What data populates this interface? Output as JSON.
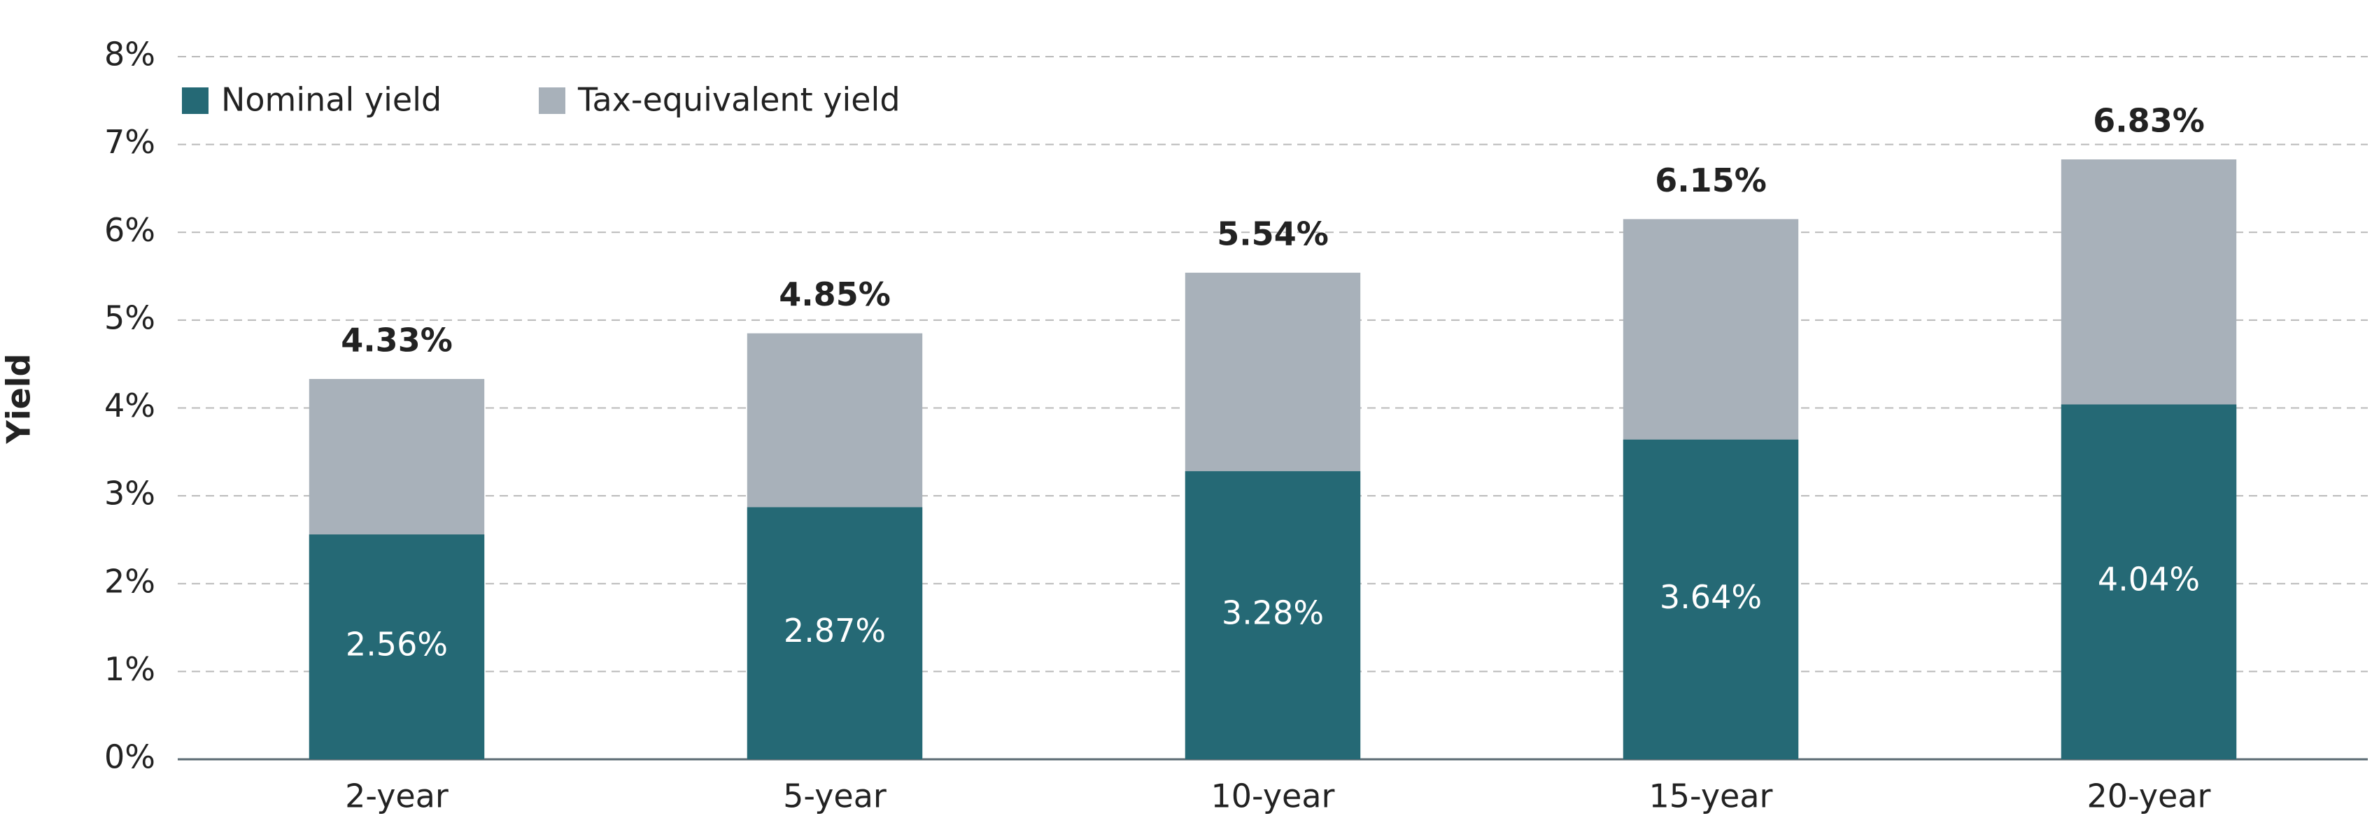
{
  "chart_data": {
    "type": "overlap_bar",
    "y_label": "Yield",
    "categories": [
      "2-year",
      "5-year",
      "10-year",
      "15-year",
      "20-year"
    ],
    "series": [
      {
        "name": "Tax-equivalent yield",
        "color": "#a8b1ba",
        "values": [
          4.33,
          4.85,
          5.54,
          6.15,
          6.83
        ],
        "value_labels": [
          "4.33%",
          "4.85%",
          "5.54%",
          "6.15%",
          "6.83%"
        ]
      },
      {
        "name": "Nominal yield",
        "color": "#256975",
        "values": [
          2.56,
          2.87,
          3.28,
          3.64,
          4.04
        ],
        "value_labels": [
          "2.56%",
          "2.87%",
          "3.28%",
          "3.64%",
          "4.04%"
        ]
      }
    ],
    "ylim": [
      0,
      8
    ],
    "yticks": [
      {
        "value": 0,
        "label": "0%"
      },
      {
        "value": 1,
        "label": "1%"
      },
      {
        "value": 2,
        "label": "2%"
      },
      {
        "value": 3,
        "label": "3%"
      },
      {
        "value": 4,
        "label": "4%"
      },
      {
        "value": 5,
        "label": "5%"
      },
      {
        "value": 6,
        "label": "6%"
      },
      {
        "value": 7,
        "label": "7%"
      },
      {
        "value": 8,
        "label": "8%"
      }
    ],
    "grid": true
  }
}
